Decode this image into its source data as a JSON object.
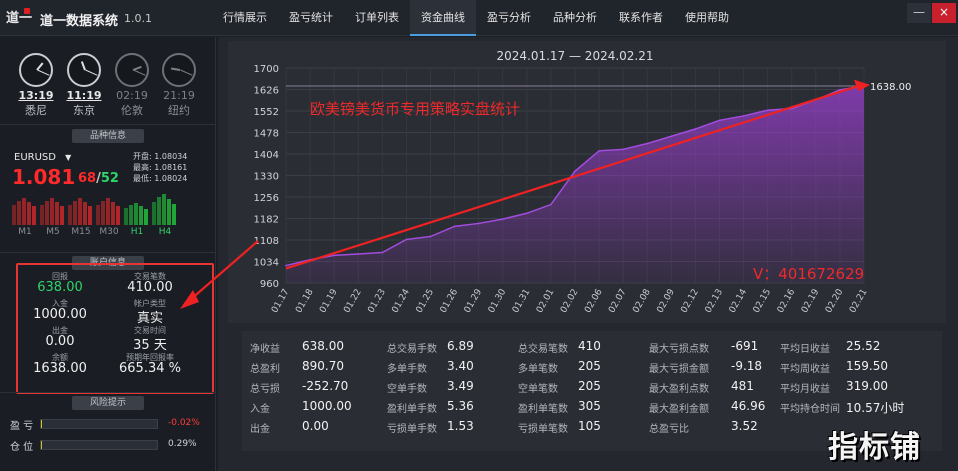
{
  "app": {
    "name": "道一数据系统",
    "version": "1.0.1",
    "logo_text": "道一"
  },
  "menu": [
    {
      "label": "行情展示",
      "active": false
    },
    {
      "label": "盈亏统计",
      "active": false
    },
    {
      "label": "订单列表",
      "active": false
    },
    {
      "label": "资金曲线",
      "active": true
    },
    {
      "label": "盈亏分析",
      "active": false
    },
    {
      "label": "品种分析",
      "active": false
    },
    {
      "label": "联系作者",
      "active": false
    },
    {
      "label": "使用帮助",
      "active": false
    }
  ],
  "window": {
    "minimize": "—",
    "close": "×"
  },
  "clocks": [
    {
      "time": "13:19",
      "city": "悉尼",
      "active": true,
      "hour": 13,
      "minute": 19
    },
    {
      "time": "11:19",
      "city": "东京",
      "active": true,
      "hour": 11,
      "minute": 19
    },
    {
      "time": "02:19",
      "city": "伦敦",
      "active": false,
      "hour": 2,
      "minute": 19
    },
    {
      "time": "21:19",
      "city": "纽约",
      "active": false,
      "hour": 21,
      "minute": 19
    }
  ],
  "symbol_panel": {
    "title": "品种信息",
    "symbol": "EURUSD",
    "dropdown_icon": "▼",
    "price_main": "1.081",
    "price_bid": "68",
    "price_sep": "/",
    "price_ask": "52",
    "open_label": "开盘:",
    "open": "1.08034",
    "high_label": "最高:",
    "high": "1.08161",
    "low_label": "最低:",
    "low": "1.08024",
    "timeframes": [
      "M1",
      "M5",
      "M15",
      "M30",
      "H1",
      "H4"
    ],
    "tf_levels": [
      0.7,
      0.7,
      0.7,
      0.7,
      0.55,
      0.85
    ],
    "tf_colors": [
      "#c0282a",
      "#c0282a",
      "#c0282a",
      "#c0282a",
      "#22b43a",
      "#22b43a"
    ]
  },
  "account": {
    "title": "账户信息",
    "items": [
      {
        "label": "回报",
        "value": "638.00",
        "color": "#2fd36b"
      },
      {
        "label": "交易笔数",
        "value": "410.00",
        "color": "#f0f0f0"
      },
      {
        "label": "入金",
        "value": "1000.00",
        "color": "#f0f0f0"
      },
      {
        "label": "帐户类型",
        "value": "真实",
        "color": "#f0f0f0"
      },
      {
        "label": "出金",
        "value": "0.00",
        "color": "#f0f0f0"
      },
      {
        "label": "交易时间",
        "value": "35 天",
        "color": "#f0f0f0"
      },
      {
        "label": "余额",
        "value": "1638.00",
        "color": "#f0f0f0"
      },
      {
        "label": "预期年回报率",
        "value": "665.34 %",
        "color": "#f0f0f0"
      }
    ]
  },
  "risk": {
    "title": "风险提示",
    "rows": [
      {
        "label": "盈 亏",
        "value": "-0.02%",
        "color": "#ff3b3b",
        "level": 0.0
      },
      {
        "label": "仓 位",
        "value": "0.29%",
        "color": "#d0d3d8",
        "level": 0.003
      }
    ]
  },
  "chart_data": {
    "type": "area",
    "title": "2024.01.17 — 2024.02.21",
    "annotation": "欧美镑美货币专用策略实盘统计",
    "contact": "V：401672629",
    "last_value_label": "1638.00",
    "ylim": [
      960,
      1700
    ],
    "yticks": [
      960,
      1034,
      1108,
      1182,
      1256,
      1330,
      1404,
      1478,
      1552,
      1626,
      1700
    ],
    "xticks": [
      "01.17",
      "01.18",
      "01.19",
      "01.22",
      "01.23",
      "01.24",
      "01.25",
      "01.26",
      "01.29",
      "01.30",
      "01.31",
      "02.01",
      "02.02",
      "02.06",
      "02.07",
      "02.08",
      "02.09",
      "02.12",
      "02.13",
      "02.14",
      "02.15",
      "02.16",
      "02.19",
      "02.20",
      "02.21"
    ],
    "values": [
      1020,
      1040,
      1055,
      1060,
      1065,
      1110,
      1120,
      1155,
      1165,
      1180,
      1200,
      1230,
      1345,
      1415,
      1420,
      1440,
      1465,
      1490,
      1520,
      1535,
      1555,
      1560,
      1590,
      1625,
      1638
    ],
    "grid": true,
    "series_color": "#9b3fd0"
  },
  "stats": [
    [
      {
        "label": "净收益",
        "value": "638.00"
      },
      {
        "label": "总盈利",
        "value": "890.70"
      },
      {
        "label": "总亏损",
        "value": "-252.70"
      },
      {
        "label": "入金",
        "value": "1000.00"
      },
      {
        "label": "出金",
        "value": "0.00"
      }
    ],
    [
      {
        "label": "总交易手数",
        "value": "6.89"
      },
      {
        "label": "多单手数",
        "value": "3.40"
      },
      {
        "label": "空单手数",
        "value": "3.49"
      },
      {
        "label": "盈利单手数",
        "value": "5.36"
      },
      {
        "label": "亏损单手数",
        "value": "1.53"
      }
    ],
    [
      {
        "label": "总交易笔数",
        "value": "410"
      },
      {
        "label": "多单笔数",
        "value": "205"
      },
      {
        "label": "空单笔数",
        "value": "205"
      },
      {
        "label": "盈利单笔数",
        "value": "305"
      },
      {
        "label": "亏损单笔数",
        "value": "105"
      }
    ],
    [
      {
        "label": "最大亏损点数",
        "value": "-691"
      },
      {
        "label": "最大亏损金额",
        "value": "-9.18"
      },
      {
        "label": "最大盈利点数",
        "value": "481"
      },
      {
        "label": "最大盈利金额",
        "value": "46.96"
      },
      {
        "label": "总盈亏比",
        "value": "3.52"
      }
    ],
    [
      {
        "label": "平均日收益",
        "value": "25.52"
      },
      {
        "label": "平均周收益",
        "value": "159.50"
      },
      {
        "label": "平均月收益",
        "value": "319.00"
      },
      {
        "label": "平均持仓时间",
        "value": "10.57小时"
      }
    ]
  ],
  "watermark": "指标铺"
}
